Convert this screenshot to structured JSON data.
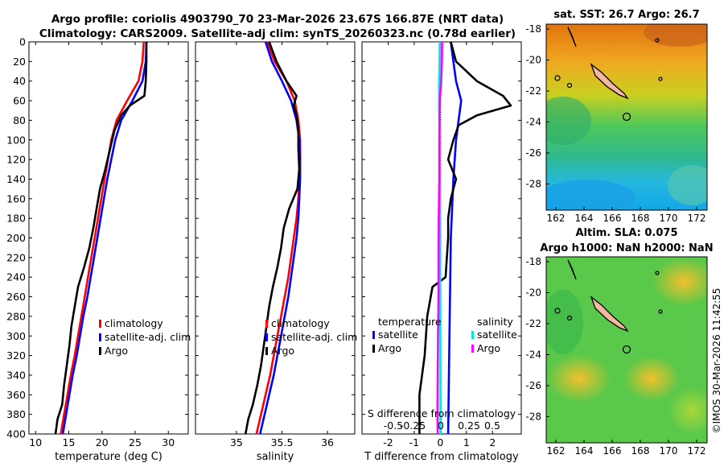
{
  "header": {
    "line1": "Argo profile: coriolis 4903790_70 23-Mar-2026 23.67S 166.87E (NRT data)",
    "line2": "Climatology: CARS2009. Satellite-adj clim: synTS_20260323.nc (0.78d earlier)"
  },
  "colors": {
    "climatology": "#ff0000",
    "satellite": "#0000ff",
    "argo": "#000000",
    "sal_satellite": "#00e5e5",
    "sal_argo": "#ff00ff"
  },
  "chart_data": [
    {
      "id": "temperature",
      "type": "line",
      "xlabel": "temperature (deg C)",
      "ylabel": "",
      "xlim": [
        9,
        33
      ],
      "ylim": [
        0,
        400
      ],
      "yreversed": true,
      "xticks": [
        10,
        15,
        20,
        25,
        30
      ],
      "yticks": [
        0,
        20,
        40,
        60,
        80,
        100,
        120,
        140,
        160,
        180,
        200,
        220,
        240,
        260,
        280,
        300,
        320,
        340,
        360,
        380,
        400
      ],
      "legend": [
        "climatology",
        "satellite-adj. clim",
        "Argo"
      ],
      "legend_position": "lower-right",
      "series": [
        {
          "name": "climatology",
          "color": "#ff0000",
          "depth": [
            0,
            20,
            40,
            60,
            80,
            100,
            120,
            140,
            160,
            180,
            200,
            220,
            240,
            260,
            280,
            300,
            320,
            340,
            360,
            380,
            400
          ],
          "values": [
            26.3,
            26.1,
            25.5,
            23.8,
            22.2,
            21.4,
            20.9,
            20.4,
            19.9,
            19.4,
            18.9,
            18.4,
            17.9,
            17.4,
            16.9,
            16.4,
            15.9,
            15.3,
            14.8,
            14.3,
            13.8
          ]
        },
        {
          "name": "satellite-adj. clim",
          "color": "#0000ff",
          "depth": [
            0,
            20,
            40,
            60,
            80,
            100,
            120,
            140,
            160,
            180,
            200,
            220,
            240,
            260,
            280,
            300,
            320,
            340,
            360,
            380,
            400
          ],
          "values": [
            26.7,
            26.6,
            26.1,
            24.6,
            22.9,
            22.0,
            21.4,
            20.8,
            20.3,
            19.8,
            19.3,
            18.8,
            18.3,
            17.8,
            17.2,
            16.7,
            16.2,
            15.6,
            15.1,
            14.6,
            14.1
          ]
        },
        {
          "name": "Argo",
          "color": "#000000",
          "depth": [
            0,
            20,
            40,
            55,
            65,
            75,
            90,
            110,
            130,
            150,
            170,
            190,
            210,
            230,
            250,
            270,
            290,
            310,
            330,
            350,
            370,
            385,
            400
          ],
          "values": [
            26.7,
            26.7,
            26.6,
            26.4,
            24.2,
            22.9,
            21.9,
            21.2,
            20.5,
            19.7,
            19.2,
            18.7,
            18.1,
            17.3,
            16.4,
            15.9,
            15.4,
            15.1,
            14.7,
            14.3,
            14.0,
            13.3,
            13.0
          ]
        }
      ]
    },
    {
      "id": "salinity",
      "type": "line",
      "xlabel": "salinity",
      "ylabel": "",
      "xlim": [
        34.55,
        36.3
      ],
      "ylim": [
        0,
        400
      ],
      "yreversed": true,
      "xticks": [
        35,
        35.5,
        36
      ],
      "legend": [
        "climatology",
        "satellite-adj. clim",
        "Argo"
      ],
      "legend_position": "lower-right",
      "series": [
        {
          "name": "climatology",
          "color": "#ff0000",
          "depth": [
            0,
            20,
            40,
            60,
            80,
            100,
            120,
            140,
            160,
            180,
            200,
            220,
            240,
            260,
            280,
            300,
            320,
            340,
            360,
            380,
            400
          ],
          "values": [
            35.34,
            35.42,
            35.55,
            35.64,
            35.68,
            35.7,
            35.7,
            35.69,
            35.68,
            35.66,
            35.63,
            35.6,
            35.57,
            35.53,
            35.49,
            35.45,
            35.41,
            35.37,
            35.32,
            35.27,
            35.22
          ]
        },
        {
          "name": "satellite-adj. clim",
          "color": "#0000ff",
          "depth": [
            0,
            20,
            40,
            60,
            80,
            100,
            120,
            140,
            160,
            180,
            200,
            220,
            240,
            260,
            280,
            300,
            320,
            340,
            360,
            380,
            400
          ],
          "values": [
            35.32,
            35.39,
            35.5,
            35.6,
            35.66,
            35.69,
            35.7,
            35.7,
            35.69,
            35.68,
            35.66,
            35.63,
            35.6,
            35.57,
            35.53,
            35.49,
            35.45,
            35.41,
            35.36,
            35.31,
            35.26
          ]
        },
        {
          "name": "Argo",
          "color": "#000000",
          "depth": [
            0,
            20,
            40,
            55,
            65,
            75,
            90,
            110,
            130,
            150,
            170,
            190,
            210,
            230,
            250,
            270,
            290,
            310,
            330,
            350,
            370,
            385,
            400
          ],
          "values": [
            35.36,
            35.44,
            35.55,
            35.66,
            35.63,
            35.66,
            35.68,
            35.68,
            35.69,
            35.67,
            35.58,
            35.52,
            35.49,
            35.45,
            35.4,
            35.36,
            35.33,
            35.3,
            35.27,
            35.23,
            35.18,
            35.13,
            35.1
          ]
        }
      ]
    },
    {
      "id": "difference",
      "type": "line",
      "xlabel": "T difference from climatology",
      "top_xlabel": "S difference from climatology",
      "xlim": [
        -3,
        3.1
      ],
      "ylim": [
        0,
        400
      ],
      "yreversed": true,
      "xticks": [
        -2,
        -1,
        0,
        1,
        2
      ],
      "top_xticks": [
        "-0.5",
        "-0.25",
        "0",
        "0.25",
        "0.5"
      ],
      "legend_left": {
        "title": "temperature",
        "items": [
          "satellite",
          "Argo"
        ]
      },
      "legend_right": {
        "title": "salinity",
        "items": [
          "satellite",
          "Argo"
        ]
      },
      "series": [
        {
          "name": "T satellite",
          "color": "#0000ff",
          "depth": [
            0,
            20,
            40,
            60,
            80,
            100,
            140,
            200,
            300,
            400
          ],
          "values": [
            0.4,
            0.5,
            0.6,
            0.8,
            0.7,
            0.6,
            0.5,
            0.4,
            0.35,
            0.3
          ]
        },
        {
          "name": "T Argo",
          "color": "#000000",
          "depth": [
            0,
            20,
            40,
            55,
            65,
            75,
            85,
            100,
            120,
            140,
            160,
            180,
            200,
            240,
            250,
            280,
            320,
            360,
            400
          ],
          "values": [
            0.4,
            0.6,
            1.4,
            2.4,
            2.7,
            1.4,
            0.7,
            0.5,
            0.3,
            0.6,
            0.4,
            0.3,
            0.3,
            0.2,
            -0.3,
            -0.5,
            -0.6,
            -0.8,
            -0.8
          ]
        },
        {
          "name": "S satellite",
          "color": "#00e5e5",
          "depth": [
            0,
            20,
            40,
            60,
            80,
            100,
            200,
            300,
            400
          ],
          "values": [
            -0.02,
            -0.03,
            -0.05,
            -0.05,
            -0.04,
            -0.02,
            -0.01,
            0.0,
            0.01
          ]
        },
        {
          "name": "S Argo",
          "color": "#ff00ff",
          "depth": [
            0,
            20,
            40,
            60,
            80,
            100,
            140,
            180,
            220,
            260,
            300,
            340,
            380,
            400
          ],
          "values": [
            0.07,
            0.06,
            0.03,
            -0.02,
            -0.03,
            -0.04,
            -0.04,
            -0.06,
            -0.07,
            -0.07,
            -0.09,
            -0.1,
            -0.11,
            -0.1
          ]
        }
      ]
    }
  ],
  "maps": [
    {
      "id": "sst-map",
      "title": "sat. SST: 26.7 Argo: 26.7",
      "subtitle": "",
      "xticks": [
        "162",
        "164",
        "166",
        "168",
        "170",
        "172"
      ],
      "yticks": [
        "-18",
        "-20",
        "-22",
        "-24",
        "-26",
        "-28"
      ]
    },
    {
      "id": "sla-map",
      "title": "Altim. SLA: 0.075",
      "subtitle": "Argo h1000: NaN h2000: NaN",
      "xticks": [
        "162",
        "164",
        "166",
        "168",
        "170",
        "172"
      ],
      "yticks": [
        "-18",
        "-20",
        "-22",
        "-24",
        "-26",
        "-28"
      ]
    }
  ],
  "footer": {
    "stamp": "©IMOS 30-Mar-2026 11:42:55"
  }
}
